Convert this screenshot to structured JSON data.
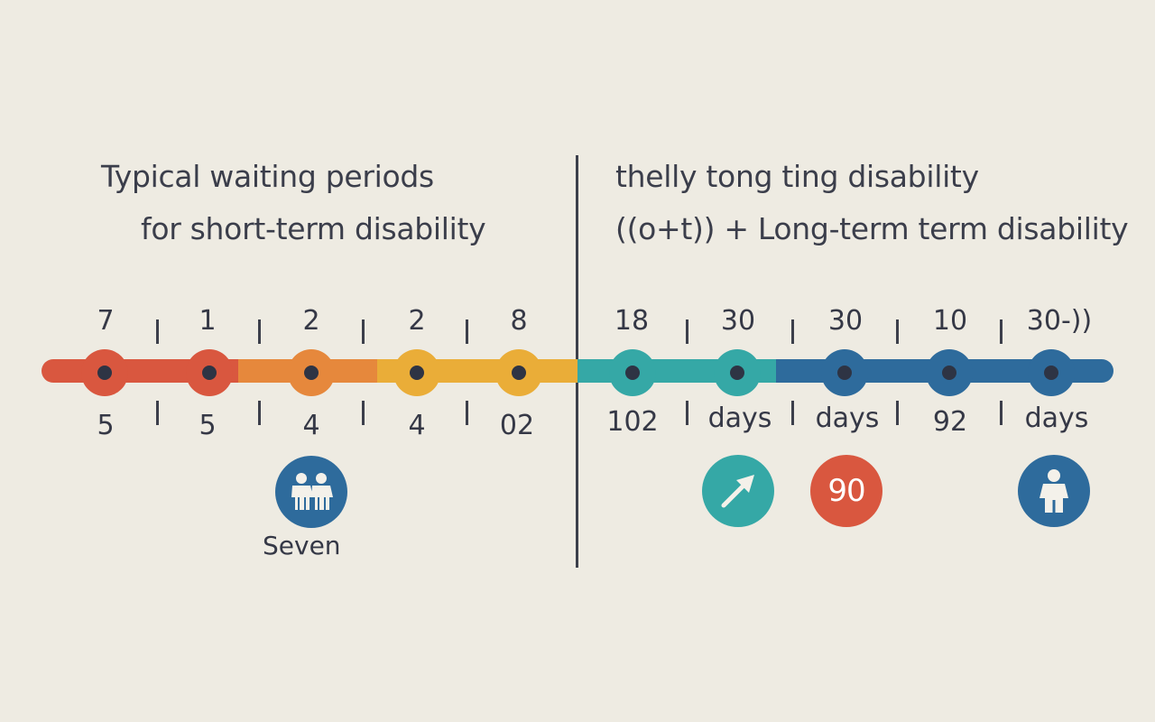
{
  "left": {
    "title_line1": "Typical waiting periods",
    "title_line2": "for short-term disability",
    "top_labels": [
      "7",
      "1",
      "2",
      "2",
      "8"
    ],
    "bottom_labels": [
      "5",
      "5",
      "4",
      "4",
      "02"
    ],
    "icon_caption": "Seven"
  },
  "right": {
    "title_line1": "thelly tong ting disability",
    "title_line2": "((o+t)) + Long-term term disability",
    "top_labels": [
      "18",
      "30",
      "30",
      "10",
      "30-))"
    ],
    "bottom_labels": [
      "102",
      "days",
      "days",
      "92",
      "days"
    ],
    "badge_value": "90"
  },
  "colors": {
    "red": "#d9573f",
    "orange": "#e6883c",
    "yellow": "#eaad38",
    "teal": "#35a8a6",
    "blue": "#2e6b9c",
    "ink": "#3c3f4b"
  },
  "icons": {
    "left_icon": "two-people-icon",
    "right_icons": [
      "arrow-icon",
      "number-badge",
      "person-icon"
    ]
  }
}
